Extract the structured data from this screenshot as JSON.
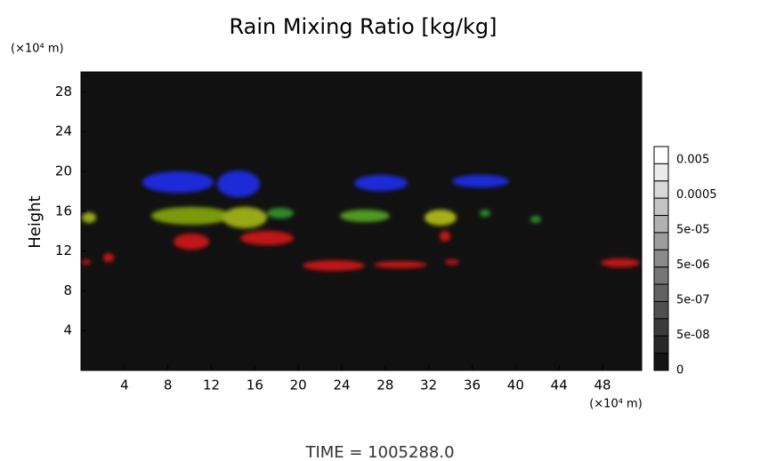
{
  "chart_data": {
    "type": "contour",
    "title": "Rain Mixing Ratio [kg/kg]",
    "y_unit": "(×10⁴ m)",
    "x_unit": "(×10⁴ m)",
    "y_label": "Height",
    "footer": "TIME = 1005288.0",
    "xlim": [
      0,
      51.6
    ],
    "xticks": [
      4,
      8,
      12,
      16,
      20,
      24,
      28,
      32,
      36,
      40,
      44,
      48
    ],
    "ylim": [
      0,
      30
    ],
    "yticks": [
      4,
      8,
      12,
      16,
      20,
      24,
      28
    ],
    "colorbar_labels": [
      "0.005",
      "0.0005",
      "5e-05",
      "5e-06",
      "5e-07",
      "5e-08",
      "0"
    ]
  }
}
